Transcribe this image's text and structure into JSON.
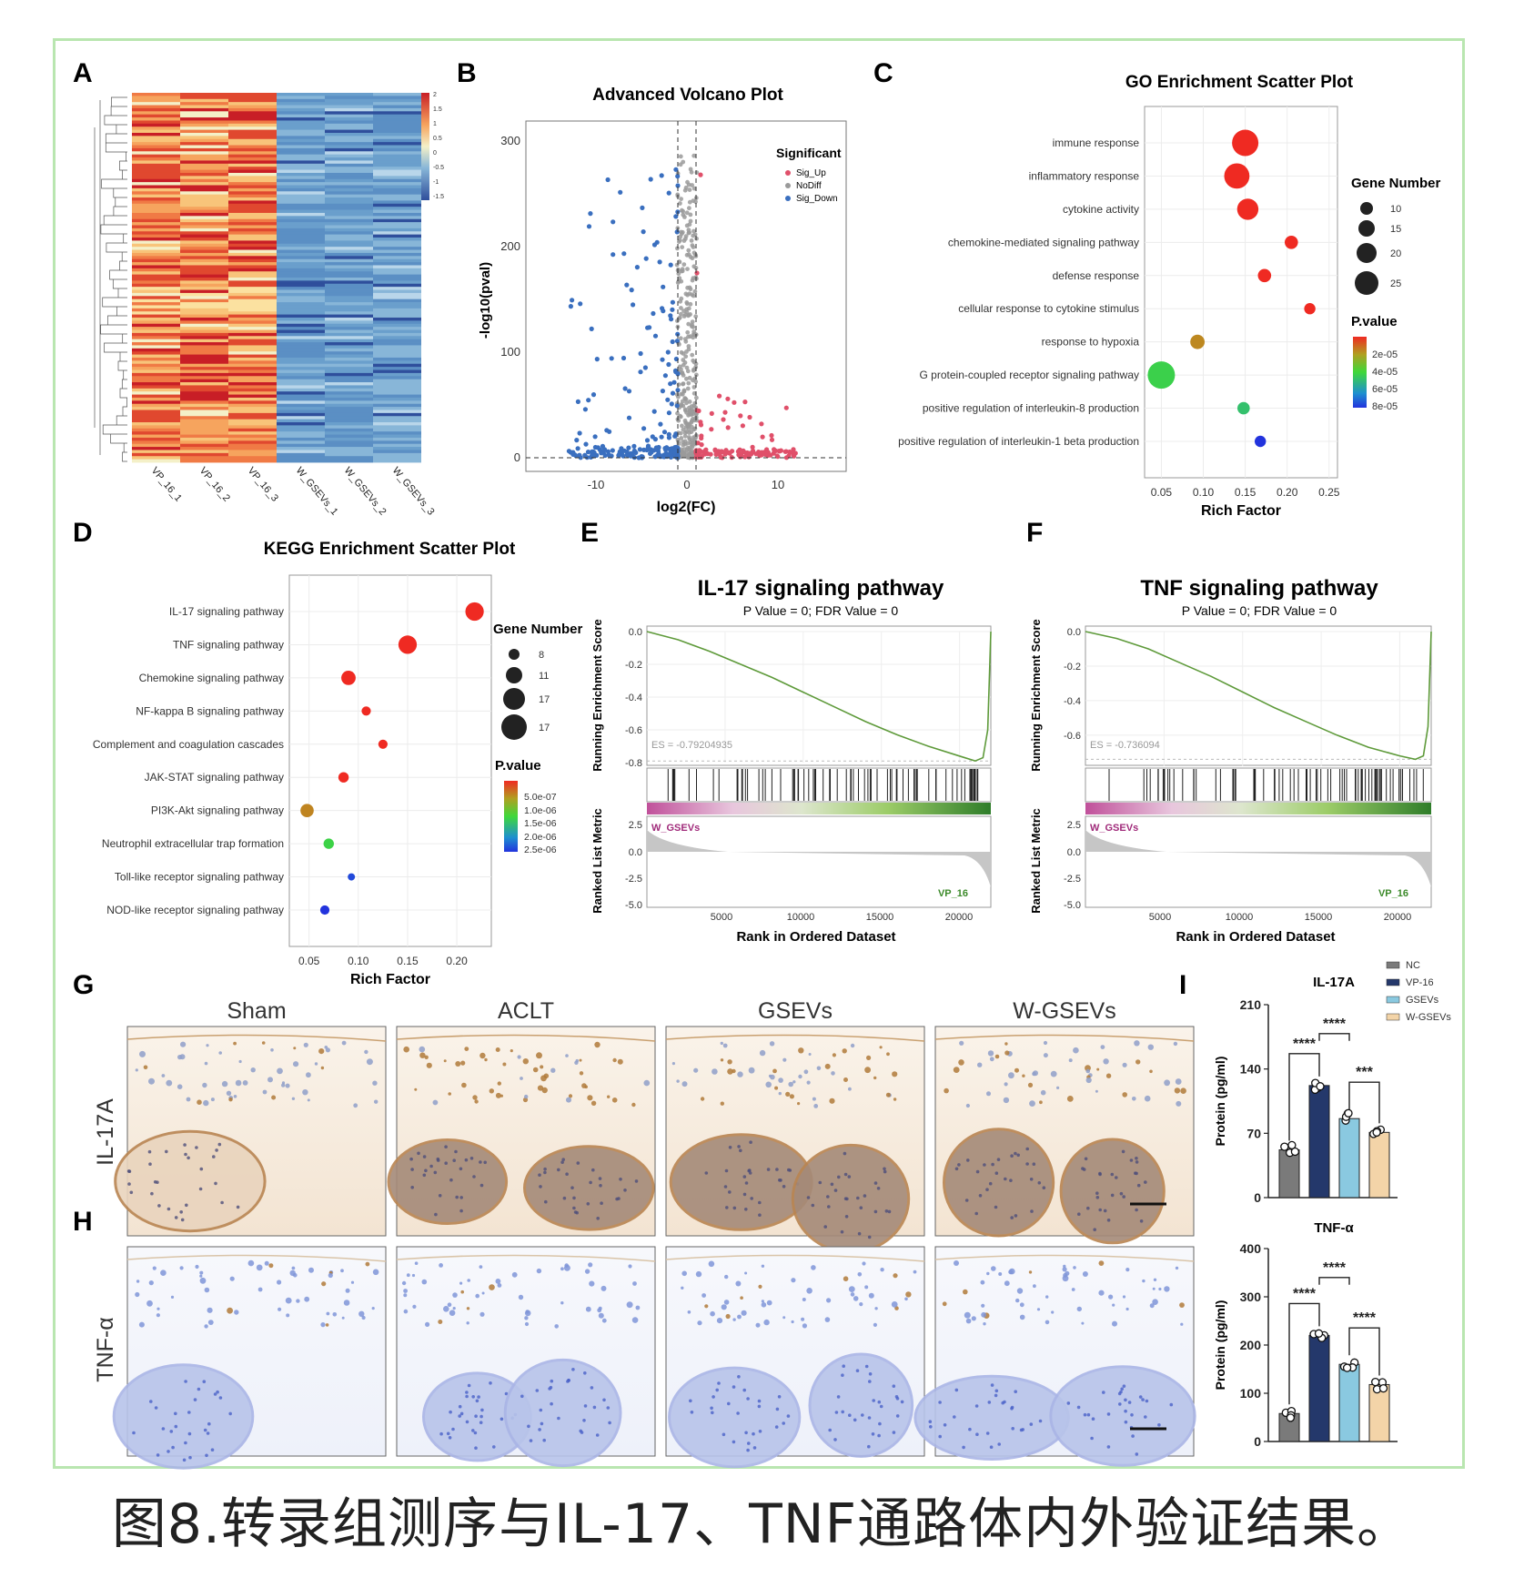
{
  "panel_letters": [
    "A",
    "B",
    "C",
    "D",
    "E",
    "F",
    "G",
    "H",
    "I"
  ],
  "caption": "图8.转录组测序与IL-17、TNF通路体内外验证结果。",
  "heatmap": {
    "samples": [
      "VP_16_1",
      "VP_16_2",
      "VP_16_3",
      "W_GSEVs_1",
      "W_GSEVs_2",
      "W_GSEVs_3"
    ],
    "colorbar_ticks": [
      "2",
      "1.5",
      "1",
      "0.5",
      "0",
      "-0.5",
      "-1",
      "-1.5"
    ]
  },
  "volcano": {
    "title": "Advanced Volcano Plot",
    "xlabel": "log2(FC)",
    "ylabel": "-log10(pval)",
    "xticks": [
      "-10",
      "0",
      "10"
    ],
    "yticks": [
      "0",
      "100",
      "200",
      "300"
    ],
    "legend_title": "Significant",
    "legend": [
      {
        "label": "Sig_Up",
        "color": "#e0506a"
      },
      {
        "label": "NoDiff",
        "color": "#9a9a9a"
      },
      {
        "label": "Sig_Down",
        "color": "#3a6fbf"
      }
    ]
  },
  "chart_data": [
    {
      "type": "scatter",
      "title": "GO Enrichment Scatter Plot",
      "xlabel": "Rich Factor",
      "xticks": [
        "0.05",
        "0.10",
        "0.15",
        "0.20",
        "0.25"
      ],
      "xlim": [
        0.03,
        0.26
      ],
      "size_legend_title": "Gene Number",
      "size_legend": [
        "10",
        "15",
        "20",
        "25"
      ],
      "color_legend_title": "P.value",
      "color_legend": [
        "2e-05",
        "4e-05",
        "6e-05",
        "8e-05"
      ],
      "categories": [
        "immune response",
        "inflammatory response",
        "cytokine activity",
        "chemokine-mediated signaling pathway",
        "defense response",
        "cellular response to cytokine stimulus",
        "response to hypoxia",
        "G protein-coupled receptor signaling pathway",
        "positive regulation of interleukin-8 production",
        "positive regulation of interleukin-1 beta production"
      ],
      "x": [
        0.15,
        0.14,
        0.153,
        0.205,
        0.173,
        0.227,
        0.093,
        0.05,
        0.148,
        0.168
      ],
      "gene_number": [
        25,
        24,
        20,
        12,
        12,
        10,
        13,
        26,
        11,
        10
      ],
      "pvalue": [
        5e-06,
        5e-06,
        5e-06,
        5e-06,
        5e-06,
        5e-06,
        2.5e-05,
        5e-05,
        5.5e-05,
        8.5e-05
      ]
    },
    {
      "type": "scatter",
      "title": "KEGG Enrichment Scatter Plot",
      "xlabel": "Rich Factor",
      "xticks": [
        "0.05",
        "0.10",
        "0.15",
        "0.20"
      ],
      "xlim": [
        0.03,
        0.235
      ],
      "size_legend_title": "Gene Number",
      "size_legend": [
        "8",
        "11",
        "17",
        "17"
      ],
      "color_legend_title": "P.value",
      "color_legend": [
        "5.0e-07",
        "1.0e-06",
        "1.5e-06",
        "2.0e-06",
        "2.5e-06"
      ],
      "categories": [
        "IL-17 signaling pathway",
        "TNF signaling pathway",
        "Chemokine signaling pathway",
        "NF-kappa B signaling pathway",
        "Complement and coagulation cascades",
        "JAK-STAT signaling pathway",
        "PI3K-Akt signaling pathway",
        "Neutrophil extracellular trap formation",
        "Toll-like receptor signaling pathway",
        "NOD-like receptor signaling pathway"
      ],
      "x": [
        0.218,
        0.15,
        0.09,
        0.108,
        0.125,
        0.085,
        0.048,
        0.07,
        0.093,
        0.066
      ],
      "gene_number": [
        17,
        17,
        13,
        8,
        8,
        9,
        12,
        9,
        6,
        8
      ],
      "pvalue": [
        1e-07,
        1e-07,
        1e-07,
        1e-07,
        1e-07,
        1e-07,
        9e-07,
        1.6e-06,
        2.5e-06,
        2.6e-06
      ]
    },
    {
      "type": "line",
      "title": "IL-17 signaling pathway",
      "subtitle": "P Value = 0; FDR Value = 0",
      "es_label": "ES = -0.79204935",
      "ylabel_top": "Running Enrichment Score",
      "ylabel_bottom": "Ranked List Metric",
      "xlabel": "Rank in Ordered Dataset",
      "yticks_top": [
        "0.0",
        "-0.2",
        "-0.4",
        "-0.6",
        "-0.8"
      ],
      "yticks_bottom": [
        "2.5",
        "0.0",
        "-2.5",
        "-5.0"
      ],
      "xticks": [
        "5000",
        "10000",
        "15000",
        "20000"
      ],
      "group_high": "W_GSEVs",
      "group_low": "VP_16",
      "x": [
        0,
        2000,
        4000,
        6000,
        8000,
        10000,
        12000,
        14000,
        16000,
        18000,
        20000,
        21000,
        21500,
        21800,
        22000
      ],
      "y": [
        0.0,
        -0.05,
        -0.12,
        -0.2,
        -0.28,
        -0.37,
        -0.46,
        -0.55,
        -0.63,
        -0.7,
        -0.76,
        -0.79,
        -0.77,
        -0.6,
        0.0
      ]
    },
    {
      "type": "line",
      "title": "TNF signaling pathway",
      "subtitle": "P Value = 0; FDR Value = 0",
      "es_label": "ES = -0.736094",
      "ylabel_top": "Running Enrichment Score",
      "ylabel_bottom": "Ranked List Metric",
      "xlabel": "Rank in Ordered Dataset",
      "yticks_top": [
        "0.0",
        "-0.2",
        "-0.4",
        "-0.6"
      ],
      "yticks_bottom": [
        "2.5",
        "0.0",
        "-2.5",
        "-5.0"
      ],
      "xticks": [
        "5000",
        "10000",
        "15000",
        "20000"
      ],
      "group_high": "W_GSEVs",
      "group_low": "VP_16",
      "x": [
        0,
        2000,
        4000,
        6000,
        8000,
        10000,
        12000,
        14000,
        16000,
        18000,
        20000,
        21000,
        21500,
        21800,
        22000
      ],
      "y": [
        0.0,
        -0.04,
        -0.1,
        -0.18,
        -0.26,
        -0.35,
        -0.44,
        -0.52,
        -0.6,
        -0.67,
        -0.72,
        -0.74,
        -0.72,
        -0.55,
        0.0
      ]
    },
    {
      "type": "bar",
      "title": "IL-17A",
      "ylabel": "Protein (pg/ml)",
      "categories": [
        "NC",
        "VP-16",
        "GSEVs",
        "W-GSEVs"
      ],
      "values": [
        52,
        122,
        86,
        71
      ],
      "ylim": [
        0,
        210
      ],
      "yticks": [
        "0",
        "70",
        "140",
        "210"
      ],
      "significance": [
        {
          "from": "NC",
          "to": "VP-16",
          "label": "****"
        },
        {
          "from": "VP-16",
          "to": "GSEVs",
          "label": "****"
        },
        {
          "from": "GSEVs",
          "to": "W-GSEVs",
          "label": "***"
        }
      ]
    },
    {
      "type": "bar",
      "title": "TNF-α",
      "ylabel": "Protein (pg/ml)",
      "categories": [
        "NC",
        "VP-16",
        "GSEVs",
        "W-GSEVs"
      ],
      "values": [
        58,
        220,
        160,
        118
      ],
      "ylim": [
        0,
        400
      ],
      "yticks": [
        "0",
        "100",
        "200",
        "300",
        "400"
      ],
      "significance": [
        {
          "from": "NC",
          "to": "VP-16",
          "label": "****"
        },
        {
          "from": "VP-16",
          "to": "GSEVs",
          "label": "****"
        },
        {
          "from": "GSEVs",
          "to": "W-GSEVs",
          "label": "****"
        }
      ]
    }
  ],
  "bar_legend": [
    {
      "label": "NC",
      "color": "#7a7a7a"
    },
    {
      "label": "VP-16",
      "color": "#24386b"
    },
    {
      "label": "GSEVs",
      "color": "#8ac9e0"
    },
    {
      "label": "W-GSEVs",
      "color": "#f3d4a8"
    }
  ],
  "histology": {
    "columns": [
      "Sham",
      "ACLT",
      "GSEVs",
      "W-GSEVs"
    ],
    "rows": [
      "IL-17A",
      "TNF-α"
    ]
  }
}
